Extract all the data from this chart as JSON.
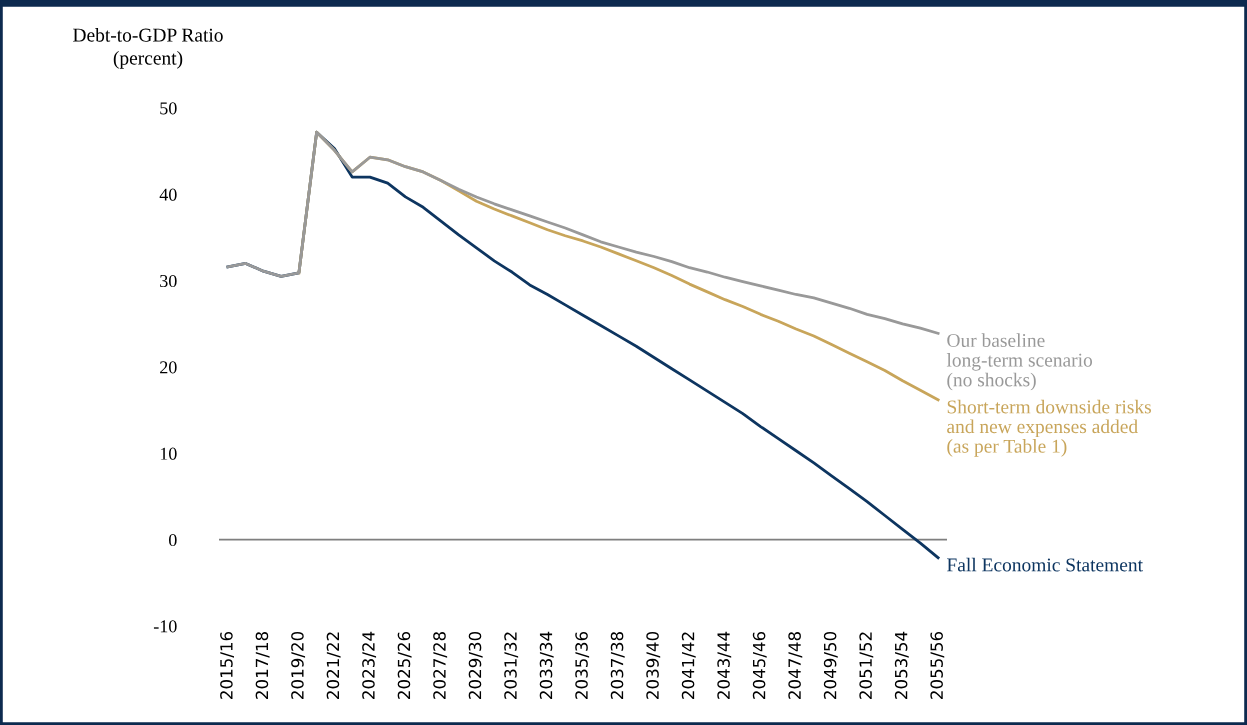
{
  "chart_data": {
    "type": "line",
    "ylabel": "Debt-to-GDP Ratio\n(percent)",
    "categories": [
      "2015/16",
      null,
      "2017/18",
      null,
      "2019/20",
      null,
      "2021/22",
      null,
      "2023/24",
      null,
      "2025/26",
      null,
      "2027/28",
      null,
      "2029/30",
      null,
      "2031/32",
      null,
      "2033/34",
      null,
      "2035/36",
      null,
      "2037/38",
      null,
      "2039/40",
      null,
      "2041/42",
      null,
      "2043/44",
      null,
      "2045/46",
      null,
      "2047/48",
      null,
      "2049/50",
      null,
      "2051/52",
      null,
      "2053/54",
      null,
      "2055/56"
    ],
    "series": [
      {
        "name": "Fall Economic Statement",
        "color": "#0d3560",
        "values": [
          31.6,
          32.0,
          31.1,
          30.5,
          30.9,
          47.2,
          45.3,
          42.0,
          42.0,
          41.3,
          39.7,
          38.5,
          36.9,
          35.3,
          33.8,
          32.3,
          31.0,
          29.5,
          28.4,
          27.2,
          26.0,
          24.8,
          23.6,
          22.4,
          21.1,
          19.8,
          18.5,
          17.2,
          15.9,
          14.6,
          13.1,
          11.7,
          10.3,
          8.9,
          7.4,
          5.9,
          4.4,
          2.8,
          1.2,
          -0.4,
          -2.1
        ]
      },
      {
        "name": "Short-term downside risks\nand new expenses added\n(as per Table 1)",
        "color": "#c8a55a",
        "values": [
          null,
          null,
          null,
          null,
          30.9,
          47.2,
          45.1,
          42.6,
          44.3,
          44.0,
          43.2,
          42.6,
          41.6,
          40.4,
          39.2,
          38.3,
          37.5,
          36.7,
          35.9,
          35.2,
          34.6,
          33.9,
          33.1,
          32.3,
          31.5,
          30.6,
          29.6,
          28.7,
          27.8,
          27.0,
          26.1,
          25.3,
          24.4,
          23.6,
          22.6,
          21.6,
          20.6,
          19.6,
          18.4,
          17.3,
          16.2
        ]
      },
      {
        "name": "Our baseline\nlong-term scenario\n(no shocks)",
        "color": "#999999",
        "values": [
          31.6,
          32.0,
          31.1,
          30.5,
          30.9,
          47.2,
          45.1,
          42.6,
          44.3,
          44.0,
          43.2,
          42.6,
          41.6,
          40.6,
          39.7,
          38.9,
          38.2,
          37.5,
          36.8,
          36.1,
          35.3,
          34.5,
          33.9,
          33.3,
          32.8,
          32.2,
          31.5,
          31.0,
          30.4,
          29.9,
          29.4,
          28.9,
          28.4,
          28.0,
          27.4,
          26.8,
          26.1,
          25.6,
          25.0,
          24.5,
          23.9
        ]
      }
    ],
    "ylim": [
      -10,
      50
    ],
    "yticks": [
      -10,
      0,
      10,
      20,
      30,
      40,
      50
    ],
    "ref_lines": [
      {
        "axis": "y",
        "value": 0,
        "color": "#7f7f7f"
      }
    ],
    "grid": false,
    "legend": false,
    "line_style": "solid",
    "marker": "none"
  }
}
